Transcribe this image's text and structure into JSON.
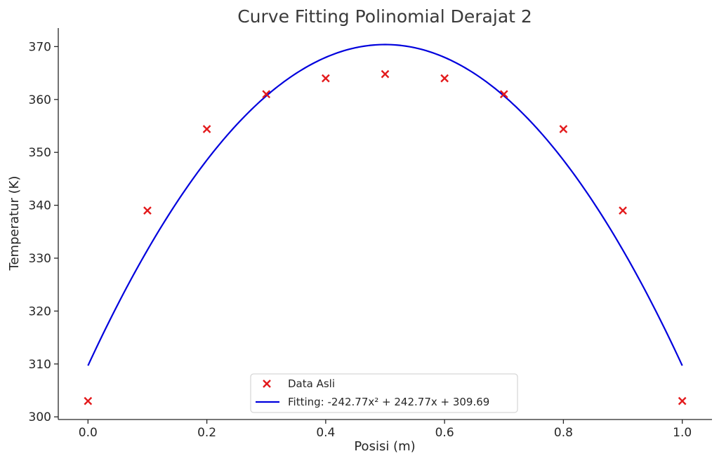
{
  "chart_data": {
    "type": "scatter+line",
    "title": "Curve Fitting Polinomial Derajat 2",
    "xlabel": "Posisi (m)",
    "ylabel": "Temperatur (K)",
    "xlim": [
      -0.05,
      1.05
    ],
    "ylim": [
      299.5,
      373.5
    ],
    "xticks": [
      0.0,
      0.2,
      0.4,
      0.6,
      0.8,
      1.0
    ],
    "xtick_labels": [
      "0.0",
      "0.2",
      "0.4",
      "0.6",
      "0.8",
      "1.0"
    ],
    "yticks": [
      300,
      310,
      320,
      330,
      340,
      350,
      360,
      370
    ],
    "ytick_labels": [
      "300",
      "310",
      "320",
      "330",
      "340",
      "350",
      "360",
      "370"
    ],
    "grid": false,
    "legend_position": "bottom-center",
    "series": [
      {
        "name": "Data Asli",
        "kind": "scatter",
        "marker": "x",
        "color": "#e31a1c",
        "x": [
          0.0,
          0.1,
          0.2,
          0.3,
          0.4,
          0.5,
          0.6,
          0.7,
          0.8,
          0.9,
          1.0
        ],
        "y": [
          303.0,
          339.0,
          354.4,
          361.0,
          364.0,
          364.8,
          364.0,
          361.0,
          354.4,
          339.0,
          303.0
        ]
      },
      {
        "name": "Fitting: -242.77x² + 242.77x + 309.69",
        "kind": "line",
        "color": "#0000dd",
        "coefficients": [
          -242.77,
          242.77,
          309.69
        ],
        "x_range": [
          0.0,
          1.0
        ]
      }
    ]
  }
}
